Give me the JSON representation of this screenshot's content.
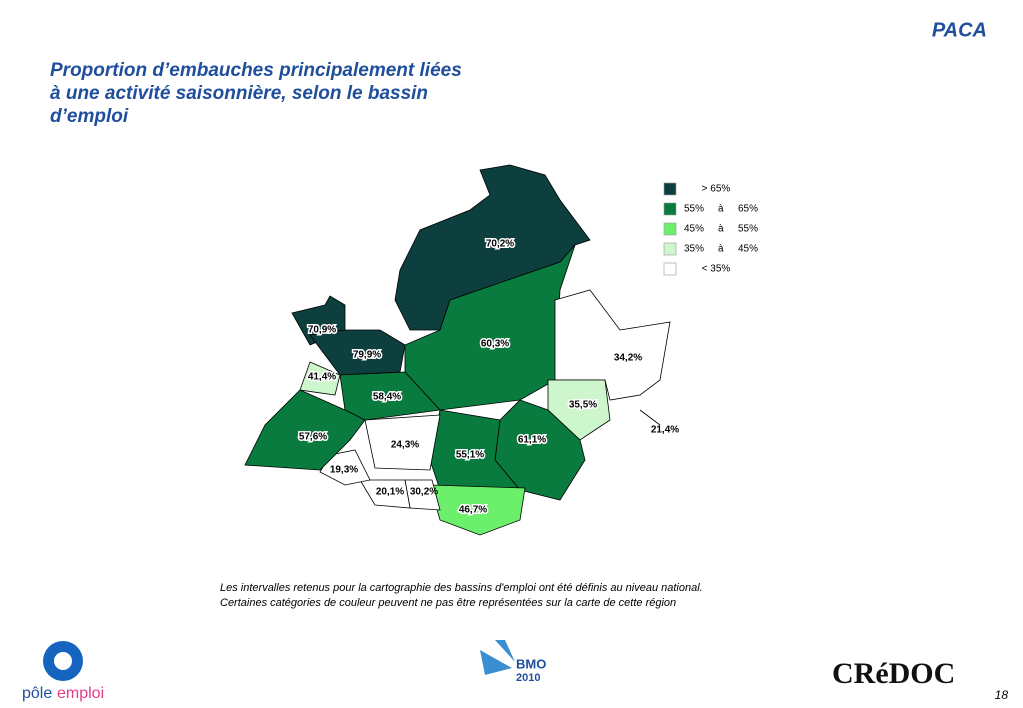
{
  "header": {
    "region": "PACA",
    "title": [
      "Proportion d’embauches principalement liées",
      "à une activité saisonnière, selon le bassin",
      "d’emploi"
    ]
  },
  "legend": [
    {
      "parts": [
        "> 65%"
      ],
      "color": "#0d3f3f"
    },
    {
      "parts": [
        "55%",
        "à",
        "65%"
      ],
      "color": "#0a7b3e"
    },
    {
      "parts": [
        "45%",
        "à",
        "55%"
      ],
      "color": "#6cf06c"
    },
    {
      "parts": [
        "35%",
        "à",
        "45%"
      ],
      "color": "#cdf6cd"
    },
    {
      "parts": [
        "< 35%"
      ],
      "color": "#ffffff"
    }
  ],
  "map": {
    "regions": [
      {
        "label": "70,2%",
        "color": "#0d3f3f"
      },
      {
        "label": "70,9%",
        "color": "#0d3f3f"
      },
      {
        "label": "79,9%",
        "color": "#0d3f3f"
      },
      {
        "label": "60,3%",
        "color": "#0a7b3e"
      },
      {
        "label": "34,2%",
        "color": "#ffffff"
      },
      {
        "label": "35,5%",
        "color": "#cdf6cd"
      },
      {
        "label": "21,4%",
        "color": "#ffffff"
      },
      {
        "label": "61,1%",
        "color": "#0a7b3e"
      },
      {
        "label": "55,1%",
        "color": "#0a7b3e"
      },
      {
        "label": "46,7%",
        "color": "#6cf06c"
      },
      {
        "label": "30,2%",
        "color": "#ffffff"
      },
      {
        "label": "20,1%",
        "color": "#ffffff"
      },
      {
        "label": "19,3%",
        "color": "#ffffff"
      },
      {
        "label": "24,3%",
        "color": "#ffffff"
      },
      {
        "label": "58,4%",
        "color": "#0a7b3e"
      },
      {
        "label": "41,4%",
        "color": "#cdf6cd"
      },
      {
        "label": "57,6%",
        "color": "#0a7b3e"
      }
    ]
  },
  "footnote": [
    "Les intervalles retenus pour la cartographie des bassins d'emploi ont été définis au niveau national.",
    "Certaines catégories de couleur peuvent ne pas être représentées sur la carte de cette région"
  ],
  "footer": {
    "pole": [
      "pôle",
      "emploi"
    ],
    "bmo": [
      "BMO",
      "2010"
    ],
    "credoc": "CRéDOC",
    "page_number": "18"
  }
}
